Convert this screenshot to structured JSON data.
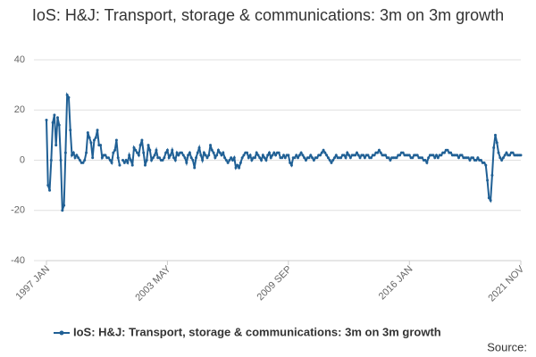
{
  "chart_data": {
    "type": "line",
    "title": "IoS: H&J: Transport, storage & communications: 3m on 3m growth",
    "source": "Source:",
    "categories": [
      "1997 JAN",
      null,
      null,
      null,
      null,
      null,
      null,
      null,
      null,
      null,
      null,
      null,
      null,
      null,
      null,
      null,
      null,
      null,
      null,
      null,
      null,
      null,
      null,
      null,
      null,
      null,
      null,
      null,
      null,
      null,
      null,
      null,
      null,
      null,
      null,
      null,
      null,
      null,
      null,
      null,
      null,
      null,
      null,
      null,
      null,
      null,
      null,
      null,
      null,
      null,
      null,
      null,
      null,
      null,
      null,
      null,
      null,
      null,
      null,
      null,
      null,
      null,
      null,
      null,
      null,
      null,
      null,
      null,
      null,
      null,
      null,
      null,
      null,
      null,
      null,
      null,
      "2003 MAY",
      null,
      null,
      null,
      null,
      null,
      null,
      null,
      null,
      null,
      null,
      null,
      null,
      null,
      null,
      null,
      null,
      null,
      null,
      null,
      null,
      null,
      null,
      null,
      null,
      null,
      null,
      null,
      null,
      null,
      null,
      null,
      null,
      null,
      null,
      null,
      null,
      null,
      null,
      null,
      null,
      null,
      null,
      null,
      null,
      null,
      null,
      null,
      null,
      null,
      null,
      null,
      null,
      null,
      null,
      null,
      null,
      null,
      null,
      null,
      null,
      null,
      null,
      null,
      null,
      null,
      null,
      null,
      null,
      null,
      null,
      null,
      null,
      null,
      null,
      null,
      "2009 SEP",
      null,
      null,
      null,
      null,
      null,
      null,
      null,
      null,
      null,
      null,
      null,
      null,
      null,
      null,
      null,
      null,
      null,
      null,
      null,
      null,
      null,
      null,
      null,
      null,
      null,
      null,
      null,
      null,
      null,
      null,
      null,
      null,
      null,
      null,
      null,
      null,
      null,
      null,
      null,
      null,
      null,
      null,
      null,
      null,
      null,
      null,
      null,
      null,
      null,
      null,
      null,
      null,
      null,
      null,
      null,
      null,
      null,
      null,
      null,
      null,
      null,
      null,
      null,
      null,
      null,
      null,
      null,
      null,
      null,
      null,
      null,
      null,
      null,
      null,
      null,
      "2016 JAN",
      null,
      null,
      null,
      null,
      null,
      null,
      null,
      null,
      null,
      null,
      null,
      null,
      null,
      null,
      null,
      null,
      null,
      null,
      null,
      null,
      null,
      null,
      null,
      null,
      null,
      null,
      null,
      null,
      null,
      null,
      null,
      null,
      null,
      null,
      null,
      null,
      null,
      null,
      null,
      null,
      null,
      null,
      null,
      null,
      null,
      null,
      null,
      null,
      null,
      null,
      null,
      null,
      null,
      null,
      null,
      null,
      null,
      null,
      null,
      null,
      null,
      null,
      null,
      null,
      null,
      null,
      null,
      null,
      null,
      "2021 NOV"
    ],
    "series": [
      {
        "name": "IoS: H&J: Transport, storage & communications: 3m on 3m growth",
        "color": "#206095",
        "values": [
          16,
          -10,
          -12,
          0,
          15,
          18,
          6,
          17,
          14,
          0,
          -20,
          -18,
          3,
          26,
          25,
          12,
          2,
          3,
          1,
          2,
          1,
          0,
          -1,
          -1,
          0,
          3,
          11,
          9,
          7,
          1,
          8,
          9,
          12,
          6,
          6,
          1,
          2,
          2,
          1,
          1,
          0,
          -1,
          3,
          4,
          8,
          1,
          -2,
          null,
          0,
          -1,
          0,
          -1,
          2,
          0,
          -2,
          5,
          4,
          3,
          2,
          6,
          8,
          3,
          -2,
          0,
          6,
          4,
          0,
          1,
          2,
          4,
          1,
          1,
          0,
          0,
          1,
          3,
          4,
          1,
          2,
          4,
          1,
          0,
          3,
          2,
          3,
          3,
          2,
          1,
          -1,
          2,
          3,
          1,
          0,
          -3,
          1,
          3,
          5,
          2,
          0,
          3,
          2,
          1,
          2,
          6,
          4,
          3,
          1,
          2,
          4,
          3,
          2,
          3,
          1,
          0,
          -1,
          0,
          1,
          0,
          1,
          -3,
          -2,
          -3,
          -1,
          1,
          2,
          3,
          3,
          1,
          2,
          0,
          1,
          1,
          3,
          2,
          1,
          0,
          2,
          1,
          0,
          2,
          3,
          1,
          2,
          3,
          2,
          3,
          3,
          1,
          1,
          2,
          1,
          2,
          2,
          -1,
          -2,
          1,
          1,
          2,
          1,
          2,
          3,
          2,
          1,
          0,
          1,
          1,
          2,
          1,
          0,
          1,
          1,
          2,
          2,
          3,
          4,
          3,
          2,
          1,
          0,
          -1,
          0,
          1,
          2,
          1,
          1,
          1,
          2,
          2,
          1,
          3,
          2,
          1,
          2,
          2,
          2,
          3,
          2,
          1,
          2,
          2,
          1,
          2,
          2,
          1,
          1,
          2,
          2,
          3,
          3,
          4,
          3,
          2,
          2,
          2,
          1,
          1,
          0,
          1,
          1,
          1,
          1,
          2,
          2,
          3,
          3,
          2,
          2,
          2,
          2,
          1,
          1,
          2,
          2,
          2,
          1,
          1,
          1,
          0,
          0,
          -1,
          1,
          2,
          2,
          2,
          1,
          2,
          1,
          2,
          2,
          3,
          3,
          4,
          4,
          3,
          3,
          2,
          2,
          2,
          2,
          1,
          2,
          2,
          1,
          1,
          1,
          1,
          0,
          1,
          1,
          0,
          0,
          1,
          0,
          0,
          -1,
          -1,
          -2,
          -8,
          -15,
          -16,
          -6,
          5,
          10,
          7,
          3,
          1,
          0,
          1,
          2,
          3,
          2,
          2,
          3,
          3,
          2,
          2,
          2,
          2,
          2
        ]
      }
    ],
    "ylim": [
      -40,
      40
    ],
    "yticks": [
      40,
      20,
      0,
      -20,
      -40
    ],
    "grid": true,
    "legend": "bottom"
  }
}
